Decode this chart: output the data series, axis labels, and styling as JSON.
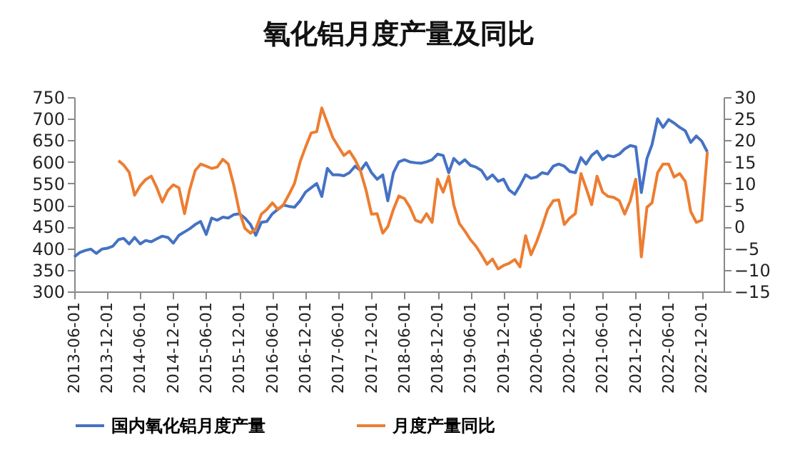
{
  "chart_data": {
    "type": "line",
    "title": "氧化铝月度产量及同比",
    "x": [
      "2013-06",
      "2013-07",
      "2013-08",
      "2013-09",
      "2013-10",
      "2013-11",
      "2013-12",
      "2014-01",
      "2014-02",
      "2014-03",
      "2014-04",
      "2014-05",
      "2014-06",
      "2014-07",
      "2014-08",
      "2014-09",
      "2014-10",
      "2014-11",
      "2014-12",
      "2015-01",
      "2015-02",
      "2015-03",
      "2015-04",
      "2015-05",
      "2015-06",
      "2015-07",
      "2015-08",
      "2015-09",
      "2015-10",
      "2015-11",
      "2015-12",
      "2016-01",
      "2016-02",
      "2016-03",
      "2016-04",
      "2016-05",
      "2016-06",
      "2016-07",
      "2016-08",
      "2016-09",
      "2016-10",
      "2016-11",
      "2016-12",
      "2017-01",
      "2017-02",
      "2017-03",
      "2017-04",
      "2017-05",
      "2017-06",
      "2017-07",
      "2017-08",
      "2017-09",
      "2017-10",
      "2017-11",
      "2017-12",
      "2018-01",
      "2018-02",
      "2018-03",
      "2018-04",
      "2018-05",
      "2018-06",
      "2018-07",
      "2018-08",
      "2018-09",
      "2018-10",
      "2018-11",
      "2018-12",
      "2019-01",
      "2019-02",
      "2019-03",
      "2019-04",
      "2019-05",
      "2019-06",
      "2019-07",
      "2019-08",
      "2019-09",
      "2019-10",
      "2019-11",
      "2019-12",
      "2020-01",
      "2020-02",
      "2020-03",
      "2020-04",
      "2020-05",
      "2020-06",
      "2020-07",
      "2020-08",
      "2020-09",
      "2020-10",
      "2020-11",
      "2020-12",
      "2021-01",
      "2021-02",
      "2021-03",
      "2021-04",
      "2021-05",
      "2021-06",
      "2021-07",
      "2021-08",
      "2021-09",
      "2021-10",
      "2021-11",
      "2021-12",
      "2022-01",
      "2022-02",
      "2022-03",
      "2022-04",
      "2022-05",
      "2022-06",
      "2022-07",
      "2022-08",
      "2022-09",
      "2022-10",
      "2022-11",
      "2022-12",
      "2023-01"
    ],
    "series": [
      {
        "name": "国内氧化铝月度产量",
        "color": "#4472c4",
        "values": [
          380,
          390,
          395,
          398,
          388,
          398,
          400,
          405,
          420,
          423,
          410,
          425,
          410,
          418,
          415,
          422,
          428,
          425,
          412,
          430,
          438,
          445,
          455,
          462,
          432,
          470,
          465,
          472,
          470,
          478,
          480,
          470,
          455,
          430,
          460,
          462,
          480,
          490,
          500,
          497,
          495,
          510,
          530,
          540,
          550,
          520,
          585,
          570,
          570,
          568,
          575,
          590,
          580,
          598,
          575,
          560,
          570,
          510,
          575,
          600,
          605,
          600,
          598,
          597,
          600,
          605,
          618,
          615,
          575,
          608,
          595,
          605,
          592,
          588,
          580,
          560,
          570,
          555,
          560,
          535,
          525,
          545,
          570,
          562,
          565,
          575,
          572,
          590,
          595,
          590,
          578,
          575,
          610,
          595,
          615,
          625,
          605,
          615,
          612,
          618,
          630,
          638,
          635,
          529,
          608,
          640,
          700,
          680,
          698,
          690,
          680,
          672,
          645,
          660,
          648,
          623
        ]
      },
      {
        "name": "月度产量同比",
        "color": "#ed7d31",
        "axis": "y2",
        "values": [
          null,
          null,
          null,
          null,
          null,
          null,
          null,
          null,
          15.3,
          14.3,
          12.6,
          7.3,
          9.5,
          10.9,
          11.7,
          9,
          5.7,
          8.4,
          9.7,
          9,
          3,
          8.5,
          13,
          14.5,
          14,
          13.5,
          13.8,
          15.6,
          14.5,
          9.5,
          3.5,
          -0.4,
          -1.5,
          -0.5,
          2.9,
          4,
          5.5,
          4,
          5.1,
          7.5,
          10,
          15,
          18.4,
          21.7,
          22,
          27.5,
          24,
          20.6,
          18.5,
          16.5,
          17.5,
          15.5,
          12.9,
          8.4,
          2.9,
          3,
          -1.5,
          0,
          4,
          7.1,
          6.5,
          4.5,
          1.5,
          1,
          3,
          1,
          11,
          8,
          11.7,
          5,
          0.7,
          -1,
          -3,
          -4.5,
          -6.5,
          -8.7,
          -7.5,
          -9.8,
          -9,
          -8.5,
          -7.6,
          -9.3,
          -2.1,
          -6.5,
          -3.5,
          0,
          4,
          6,
          6.2,
          0.5,
          2,
          3,
          12.3,
          9,
          5.1,
          11.7,
          8,
          7,
          6.8,
          6,
          2.9,
          6,
          11,
          -7,
          4.5,
          5.5,
          12.5,
          14.5,
          14.5,
          11.5,
          12.3,
          10.5,
          3.5,
          1,
          1.5,
          17.3
        ]
      }
    ],
    "xlim": [
      "2013-06-01",
      "2023-04-01"
    ],
    "xticks": [
      "2013-06-01",
      "2013-12-01",
      "2014-06-01",
      "2014-12-01",
      "2015-06-01",
      "2015-12-01",
      "2016-06-01",
      "2016-12-01",
      "2017-06-01",
      "2017-12-01",
      "2018-06-01",
      "2018-12-01",
      "2019-06-01",
      "2019-12-01",
      "2020-06-01",
      "2020-12-01",
      "2021-06-01",
      "2021-12-01",
      "2022-06-01",
      "2022-12-01"
    ],
    "ylim": [
      300,
      750
    ],
    "yticks": [
      300,
      350,
      400,
      450,
      500,
      550,
      600,
      650,
      700,
      750
    ],
    "y2lim": [
      -15,
      30
    ],
    "y2ticks": [
      -15,
      -10,
      -5,
      0,
      5,
      10,
      15,
      20,
      25,
      30
    ],
    "grid": false,
    "legend": "bottom",
    "marker": "none",
    "line_style": "solid"
  }
}
